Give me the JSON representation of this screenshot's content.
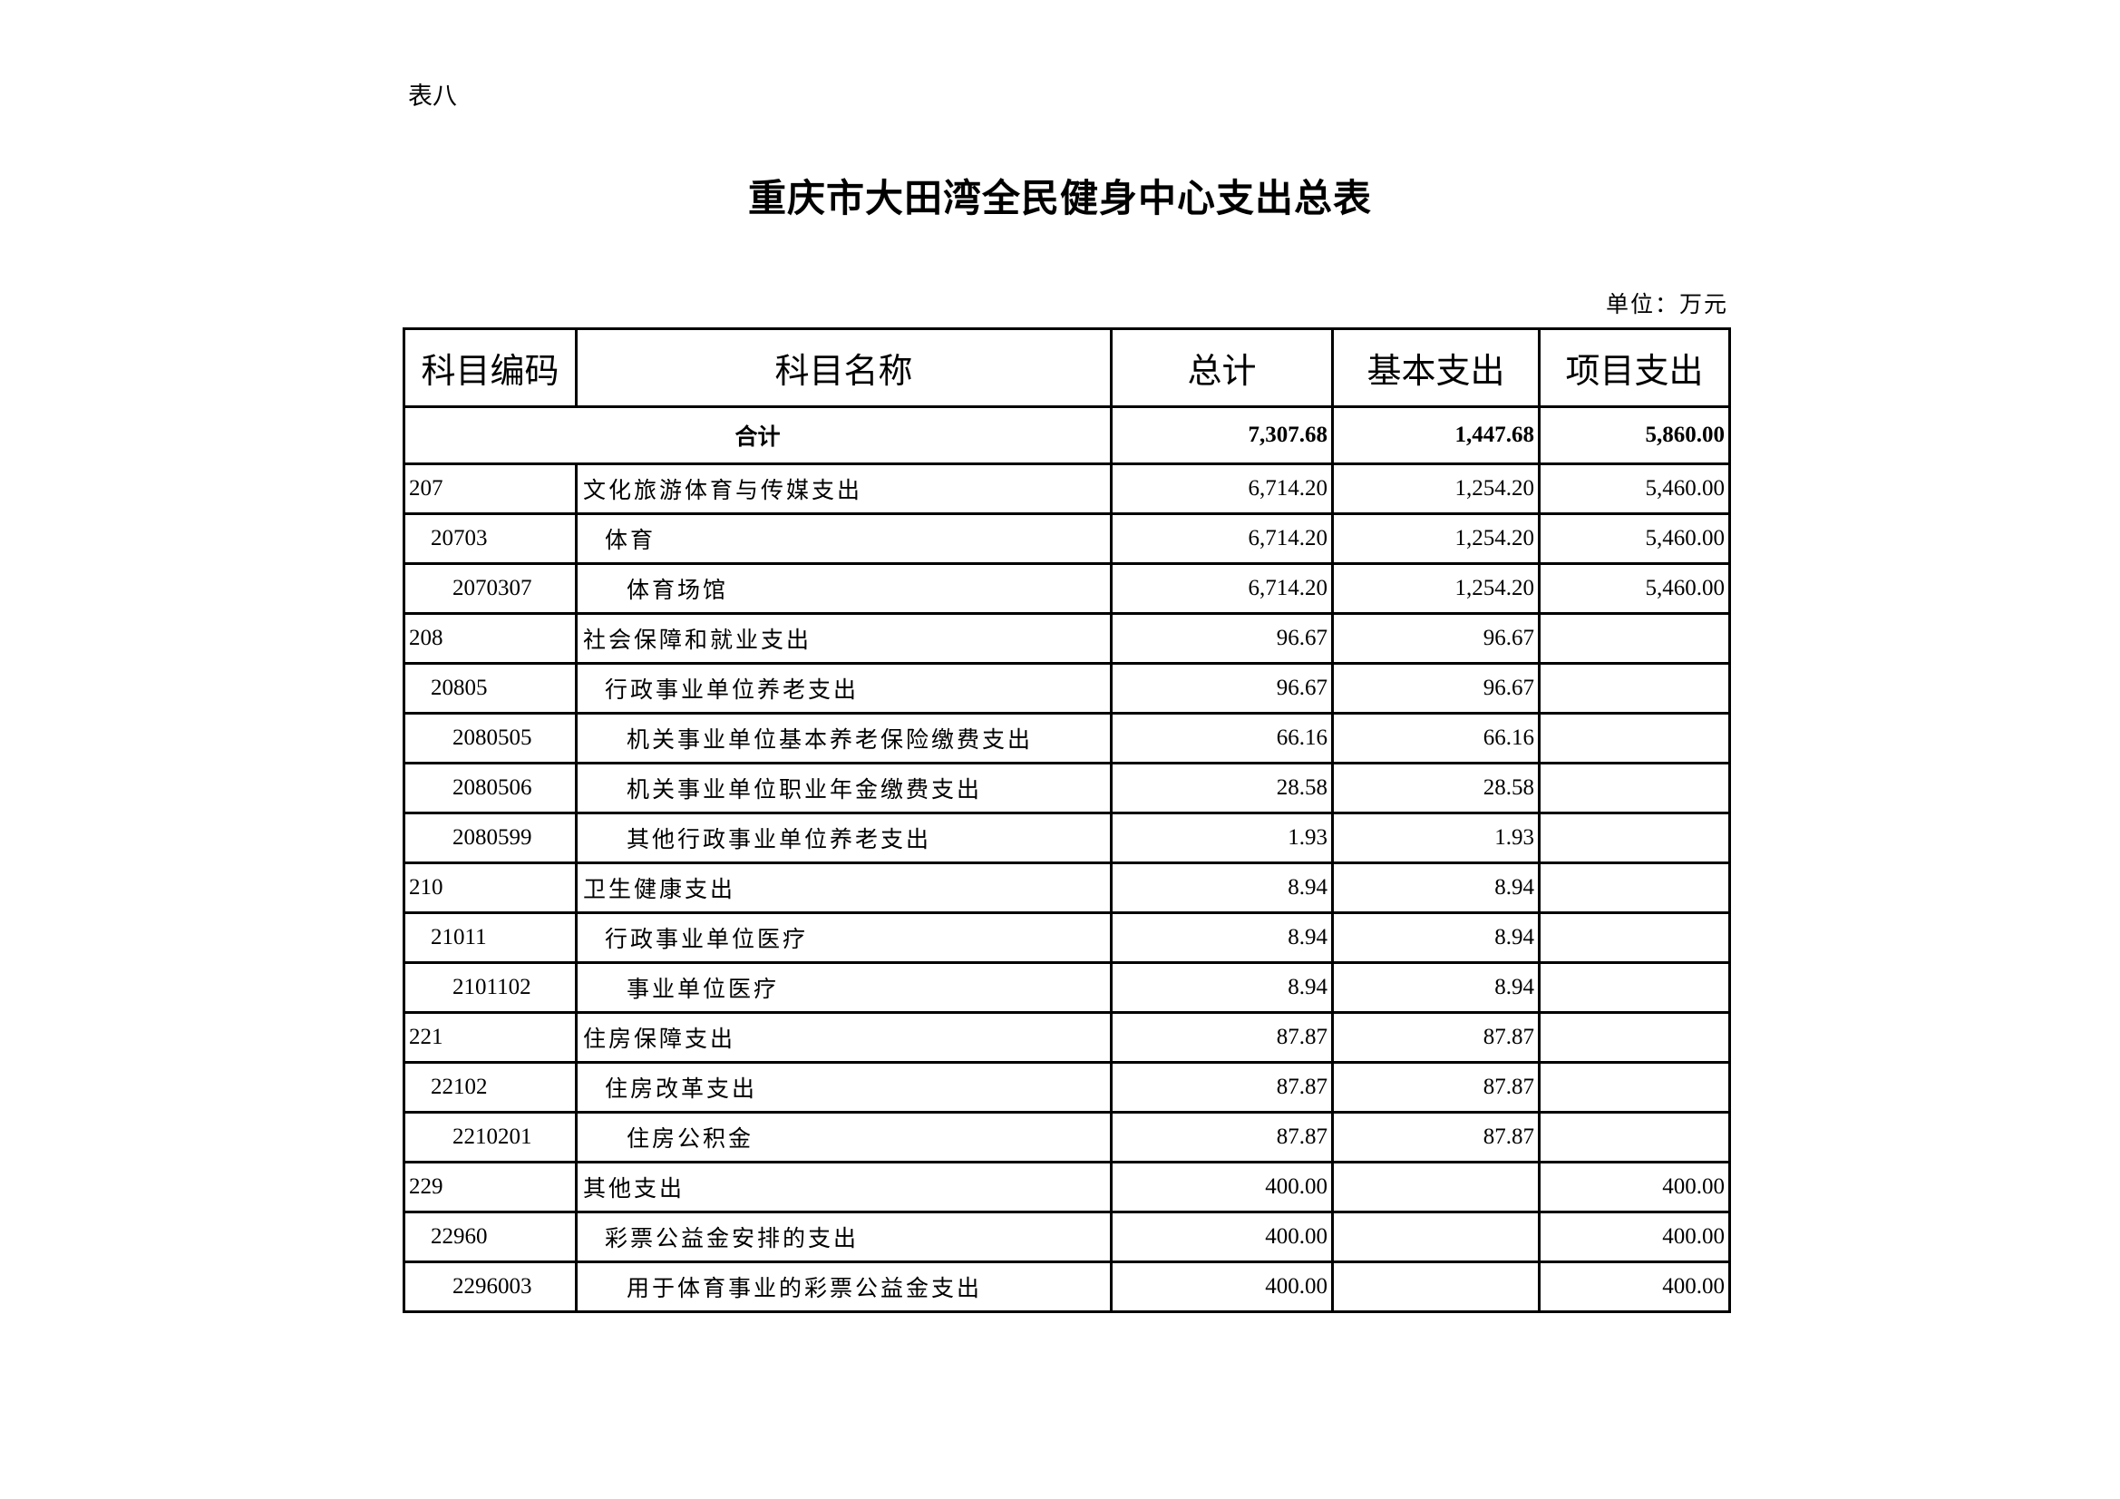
{
  "doc_label": "表八",
  "title": "重庆市大田湾全民健身中心支出总表",
  "unit": "单位：万元",
  "headers": [
    "科目编码",
    "科目名称",
    "总计",
    "基本支出",
    "项目支出"
  ],
  "total": {
    "label": "合计",
    "total": "7,307.68",
    "basic": "1,447.68",
    "project": "5,860.00"
  },
  "rows": [
    {
      "code": "207",
      "name": "文化旅游体育与传媒支出",
      "level": 1,
      "total": "6,714.20",
      "basic": "1,254.20",
      "project": "5,460.00"
    },
    {
      "code": "20703",
      "name": "体育",
      "level": 2,
      "total": "6,714.20",
      "basic": "1,254.20",
      "project": "5,460.00"
    },
    {
      "code": "2070307",
      "name": "体育场馆",
      "level": 3,
      "total": "6,714.20",
      "basic": "1,254.20",
      "project": "5,460.00"
    },
    {
      "code": "208",
      "name": "社会保障和就业支出",
      "level": 1,
      "total": "96.67",
      "basic": "96.67",
      "project": ""
    },
    {
      "code": "20805",
      "name": "行政事业单位养老支出",
      "level": 2,
      "total": "96.67",
      "basic": "96.67",
      "project": ""
    },
    {
      "code": "2080505",
      "name": "机关事业单位基本养老保险缴费支出",
      "level": 3,
      "total": "66.16",
      "basic": "66.16",
      "project": ""
    },
    {
      "code": "2080506",
      "name": "机关事业单位职业年金缴费支出",
      "level": 3,
      "total": "28.58",
      "basic": "28.58",
      "project": ""
    },
    {
      "code": "2080599",
      "name": "其他行政事业单位养老支出",
      "level": 3,
      "total": "1.93",
      "basic": "1.93",
      "project": ""
    },
    {
      "code": "210",
      "name": "卫生健康支出",
      "level": 1,
      "total": "8.94",
      "basic": "8.94",
      "project": ""
    },
    {
      "code": "21011",
      "name": "行政事业单位医疗",
      "level": 2,
      "total": "8.94",
      "basic": "8.94",
      "project": ""
    },
    {
      "code": "2101102",
      "name": "事业单位医疗",
      "level": 3,
      "total": "8.94",
      "basic": "8.94",
      "project": ""
    },
    {
      "code": "221",
      "name": "住房保障支出",
      "level": 1,
      "total": "87.87",
      "basic": "87.87",
      "project": ""
    },
    {
      "code": "22102",
      "name": "住房改革支出",
      "level": 2,
      "total": "87.87",
      "basic": "87.87",
      "project": ""
    },
    {
      "code": "2210201",
      "name": "住房公积金",
      "level": 3,
      "total": "87.87",
      "basic": "87.87",
      "project": ""
    },
    {
      "code": "229",
      "name": "其他支出",
      "level": 1,
      "total": "400.00",
      "basic": "",
      "project": "400.00"
    },
    {
      "code": "22960",
      "name": "彩票公益金安排的支出",
      "level": 2,
      "total": "400.00",
      "basic": "",
      "project": "400.00"
    },
    {
      "code": "2296003",
      "name": "用于体育事业的彩票公益金支出",
      "level": 3,
      "total": "400.00",
      "basic": "",
      "project": "400.00"
    }
  ]
}
